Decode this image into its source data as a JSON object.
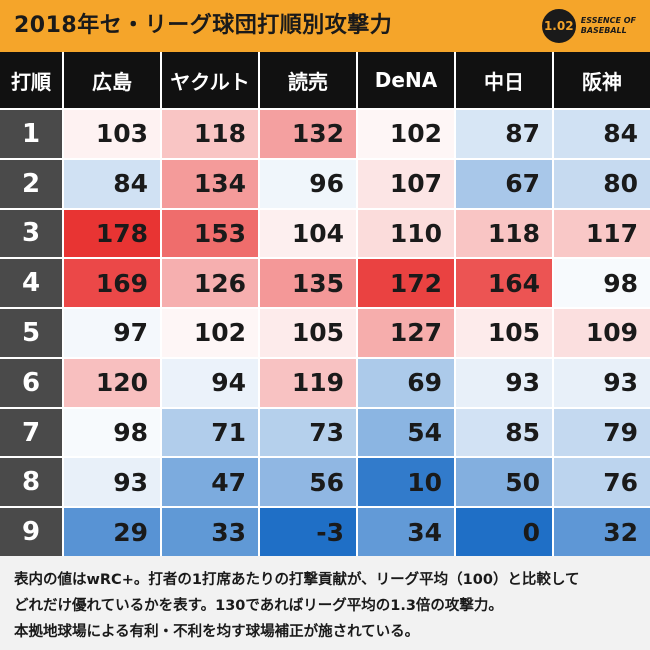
{
  "title": "2018年セ・リーグ球団打順別攻撃力",
  "logo": {
    "badge": "1.02",
    "line1": "ESSENCE OF",
    "line2": "BASEBALL"
  },
  "chart_data": {
    "type": "heatmap",
    "title": "2018年セ・リーグ球団打順別攻撃力",
    "corner_label": "打順",
    "columns": [
      "広島",
      "ヤクルト",
      "読売",
      "DeNA",
      "中日",
      "阪神"
    ],
    "rows": [
      "1",
      "2",
      "3",
      "4",
      "5",
      "6",
      "7",
      "8",
      "9"
    ],
    "values": [
      [
        103,
        118,
        132,
        102,
        87,
        84
      ],
      [
        84,
        134,
        96,
        107,
        67,
        80
      ],
      [
        178,
        153,
        104,
        110,
        118,
        117
      ],
      [
        169,
        126,
        135,
        172,
        164,
        98
      ],
      [
        97,
        102,
        105,
        127,
        105,
        109
      ],
      [
        120,
        94,
        119,
        69,
        93,
        93
      ],
      [
        98,
        71,
        73,
        54,
        85,
        79
      ],
      [
        93,
        47,
        56,
        10,
        50,
        76
      ],
      [
        29,
        33,
        -3,
        34,
        0,
        32
      ]
    ],
    "scale_center": 100,
    "colors": {
      "high": "#e8302f",
      "neutral": "#ffffff",
      "low": "#1f6fc6"
    }
  },
  "footer": {
    "line1": "表内の値はwRC+。打者の1打席あたりの打撃貢献が、リーグ平均（100）と比較して",
    "line2": "どれだけ優れているかを表す。130であればリーグ平均の1.3倍の攻撃力。",
    "line3": "本拠地球場による有利・不利を均す球場補正が施されている。"
  }
}
